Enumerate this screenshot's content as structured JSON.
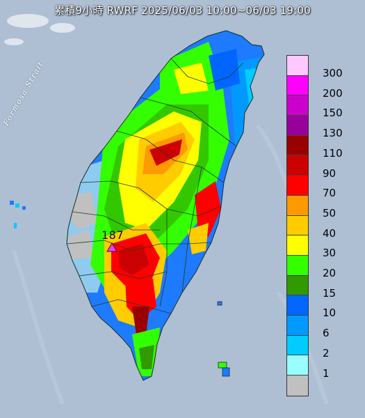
{
  "title": "累積9小時 RWRF 2025/06/03 10:00~06/03 19:00",
  "strait_label": "Formosa Strait",
  "max_marker": {
    "value": "187",
    "color": "#ff33ff"
  },
  "legend": [
    {
      "label": "300",
      "color": "#ffc8ff"
    },
    {
      "label": "200",
      "color": "#ff00ff"
    },
    {
      "label": "150",
      "color": "#cc00cc"
    },
    {
      "label": "130",
      "color": "#990099"
    },
    {
      "label": "110",
      "color": "#990000"
    },
    {
      "label": "90",
      "color": "#cc0000"
    },
    {
      "label": "70",
      "color": "#ff0000"
    },
    {
      "label": "50",
      "color": "#ff9900"
    },
    {
      "label": "40",
      "color": "#ffcc00"
    },
    {
      "label": "30",
      "color": "#ffff00"
    },
    {
      "label": "20",
      "color": "#33ff00"
    },
    {
      "label": "15",
      "color": "#339900"
    },
    {
      "label": "10",
      "color": "#0066ff"
    },
    {
      "label": "6",
      "color": "#0099ff"
    },
    {
      "label": "2",
      "color": "#00ccff"
    },
    {
      "label": "1",
      "color": "#99ffff"
    },
    {
      "label": "",
      "color": "#c0c0c0"
    }
  ],
  "colors": {
    "sea": "#aebfd4",
    "land_base": "#cfd8cc",
    "county_border": "#1f3b1f"
  }
}
